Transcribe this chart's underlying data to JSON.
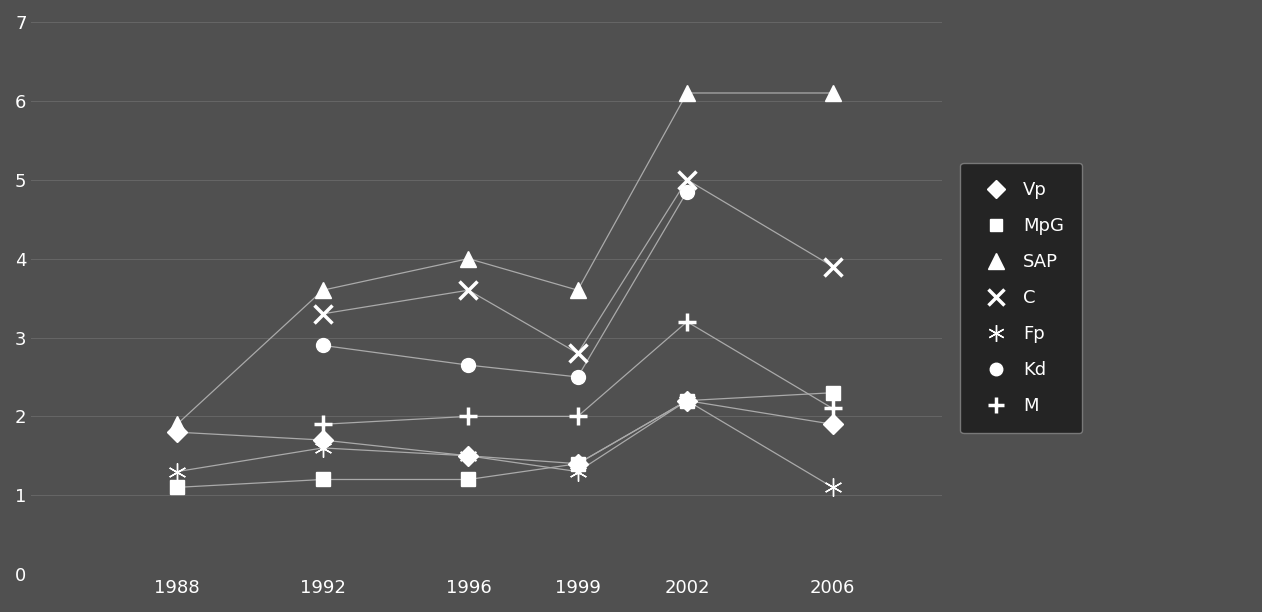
{
  "years": [
    1988,
    1992,
    1996,
    1999,
    2002,
    2006
  ],
  "series": {
    "Vp": {
      "values": [
        1.8,
        1.7,
        1.5,
        1.4,
        2.2,
        1.9
      ],
      "marker": "D",
      "label": "Vp"
    },
    "MpG": {
      "values": [
        1.1,
        1.2,
        1.2,
        1.4,
        2.2,
        2.3
      ],
      "marker": "s",
      "label": "MpG"
    },
    "SAP": {
      "values": [
        1.9,
        3.6,
        4.0,
        3.6,
        6.1,
        6.1
      ],
      "marker": "^",
      "label": "SAP"
    },
    "C": {
      "values": [
        null,
        3.3,
        3.6,
        2.8,
        5.0,
        3.9
      ],
      "marker": "x",
      "label": "C"
    },
    "Fp": {
      "values": [
        1.3,
        1.6,
        1.5,
        1.3,
        2.2,
        1.1
      ],
      "marker": "asterisk",
      "label": "Fp"
    },
    "Kd": {
      "values": [
        null,
        2.9,
        2.65,
        2.5,
        4.85,
        null
      ],
      "marker": "o",
      "label": "Kd"
    },
    "M": {
      "values": [
        null,
        1.9,
        2.0,
        2.0,
        3.2,
        2.1
      ],
      "marker": "+",
      "label": "M"
    }
  },
  "ylim": [
    0,
    7
  ],
  "yticks": [
    0,
    1,
    2,
    3,
    4,
    5,
    6,
    7
  ],
  "background_color": "#505050",
  "plot_bg_color": "#505050",
  "grid_color": "#666666",
  "line_color": "#aaaaaa",
  "marker_color": "#ffffff",
  "text_color": "#ffffff",
  "legend_bg_color": "#1a1a1a",
  "legend_edge_color": "#888888",
  "marker_size": 11,
  "line_width": 0.9,
  "figwidth": 12.62,
  "figheight": 6.12,
  "dpi": 100
}
